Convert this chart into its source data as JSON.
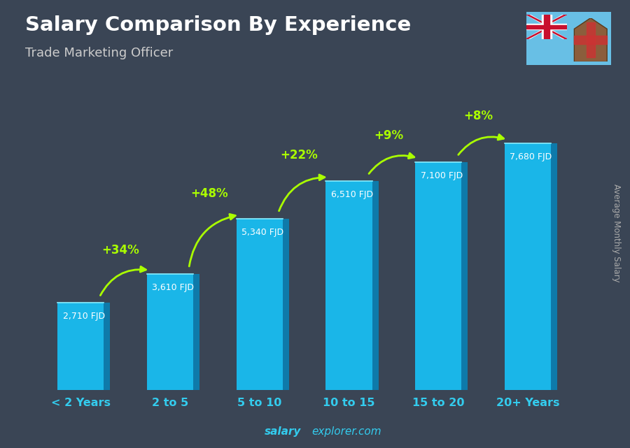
{
  "categories": [
    "< 2 Years",
    "2 to 5",
    "5 to 10",
    "10 to 15",
    "15 to 20",
    "20+ Years"
  ],
  "values": [
    2710,
    3610,
    5340,
    6510,
    7100,
    7680
  ],
  "bar_front_color": "#1ab6e8",
  "bar_side_color": "#0e7aaa",
  "bar_top_color": "#55d4f5",
  "title": "Salary Comparison By Experience",
  "subtitle": "Trade Marketing Officer",
  "ylabel": "Average Monthly Salary",
  "bg_color": "#3a4555",
  "title_color": "#ffffff",
  "subtitle_color": "#cccccc",
  "value_label_color": "#ffffff",
  "xtick_color": "#33ccee",
  "pct_color": "#aaff00",
  "pct_labels": [
    "+34%",
    "+48%",
    "+22%",
    "+9%",
    "+8%"
  ],
  "value_labels": [
    "2,710 FJD",
    "3,610 FJD",
    "5,340 FJD",
    "6,510 FJD",
    "7,100 FJD",
    "7,680 FJD"
  ],
  "watermark_bold": "salary",
  "watermark_normal": "explorer.com",
  "watermark_color": "#33ccee",
  "ylabel_color": "#aaaaaa",
  "ylim": [
    0,
    9500
  ]
}
